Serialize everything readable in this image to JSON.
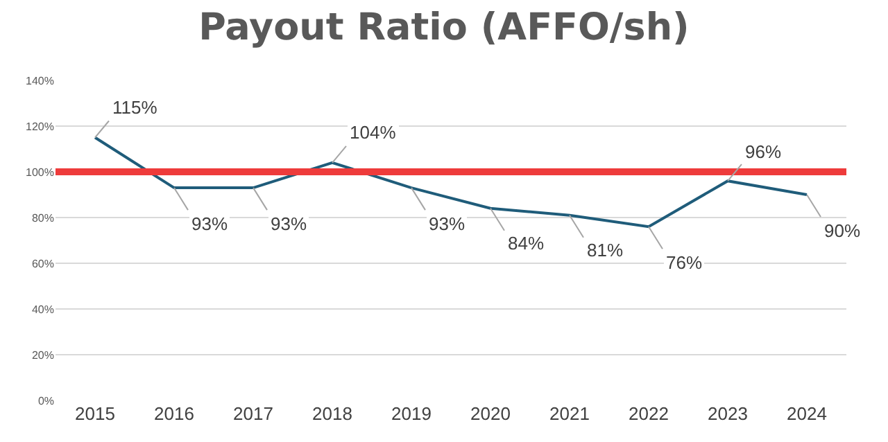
{
  "chart_data": {
    "type": "line",
    "title": "Payout Ratio (AFFO/sh)",
    "categories": [
      "2015",
      "2016",
      "2017",
      "2018",
      "2019",
      "2020",
      "2021",
      "2022",
      "2023",
      "2024"
    ],
    "series": [
      {
        "color": "#1f5c7a",
        "values": [
          115,
          93,
          93,
          104,
          93,
          84,
          81,
          76,
          96,
          90
        ],
        "value_labels": [
          "115%",
          "93%",
          "93%",
          "104%",
          "93%",
          "84%",
          "81%",
          "76%",
          "96%",
          "90%"
        ]
      }
    ],
    "ylim": [
      0,
      140
    ],
    "yticks": [
      {
        "value": 0,
        "label": "0%"
      },
      {
        "value": 20,
        "label": "20%"
      },
      {
        "value": 40,
        "label": "40%"
      },
      {
        "value": 60,
        "label": "60%"
      },
      {
        "value": 80,
        "label": "80%"
      },
      {
        "value": 100,
        "label": "100%"
      },
      {
        "value": 120,
        "label": "120%"
      },
      {
        "value": 140,
        "label": "140%"
      }
    ],
    "grid": "y",
    "marker": "none",
    "line_style": "solid",
    "ref_lines": [
      {
        "axis": "y",
        "value": 100,
        "color": "#ee3b3b",
        "line_style": "solid"
      }
    ]
  }
}
